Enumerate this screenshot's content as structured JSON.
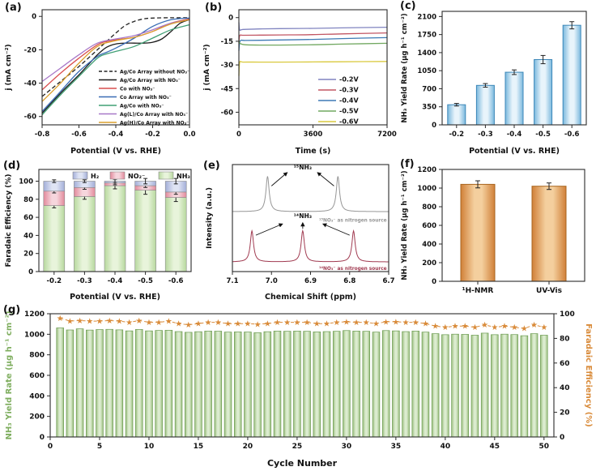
{
  "chart_data": [
    {
      "panel_label": "(a)",
      "type": "line",
      "xlabel": "Potential (V vs. RHE)",
      "ylabel": "j (mA cm⁻²)",
      "xlim": [
        -0.8,
        0.0
      ],
      "ylim": [
        -65,
        4
      ],
      "xticks": [
        -0.8,
        -0.6,
        -0.4,
        -0.2,
        0.0
      ],
      "xtick_labels": [
        "-0.8",
        "-0.6",
        "-0.4",
        "-0.2",
        "0.0"
      ],
      "yticks": [
        0,
        -20,
        -40,
        -60
      ],
      "legend_position": "bottom-right",
      "series": [
        {
          "name": "Ag/Co Array without NO₃⁻",
          "color": "#222222",
          "dash": true,
          "x": [
            -0.8,
            -0.7,
            -0.6,
            -0.5,
            -0.45,
            -0.4,
            -0.35,
            -0.3,
            -0.25,
            -0.2,
            -0.1,
            0
          ],
          "y": [
            -48,
            -39,
            -30,
            -20,
            -15,
            -10,
            -5.5,
            -3,
            -1.5,
            -1,
            -0.8,
            -0.8
          ]
        },
        {
          "name": "Ag/Co Array with NO₃⁻",
          "color": "#1a1a1a",
          "dash": false,
          "x": [
            -0.8,
            -0.7,
            -0.6,
            -0.55,
            -0.5,
            -0.45,
            -0.4,
            -0.35,
            -0.3,
            -0.25,
            -0.2,
            -0.15,
            -0.1,
            -0.05,
            0
          ],
          "y": [
            -58,
            -46,
            -35,
            -29,
            -23,
            -18.5,
            -16.5,
            -16,
            -16,
            -16,
            -15.5,
            -13.5,
            -9,
            -4,
            -2
          ]
        },
        {
          "name": "Co with NO₃⁻",
          "color": "#d94f4f",
          "dash": false,
          "x": [
            -0.8,
            -0.7,
            -0.6,
            -0.5,
            -0.45,
            -0.4,
            -0.3,
            -0.2,
            -0.1,
            0
          ],
          "y": [
            -44,
            -34,
            -25,
            -17,
            -15,
            -14,
            -12.5,
            -9,
            -4,
            -1.5
          ]
        },
        {
          "name": "Co Array with NO₃⁻",
          "color": "#3b6db5",
          "dash": false,
          "x": [
            -0.8,
            -0.7,
            -0.6,
            -0.5,
            -0.45,
            -0.4,
            -0.3,
            -0.2,
            -0.1,
            0
          ],
          "y": [
            -57,
            -45,
            -33,
            -24,
            -21.5,
            -19,
            -13,
            -6,
            -2,
            -1
          ]
        },
        {
          "name": "Ag/Co with NO₃⁻",
          "color": "#41a075",
          "dash": false,
          "x": [
            -0.8,
            -0.7,
            -0.6,
            -0.5,
            -0.45,
            -0.4,
            -0.3,
            -0.2,
            -0.1,
            0
          ],
          "y": [
            -59,
            -47,
            -36,
            -25,
            -22.5,
            -21,
            -18,
            -13,
            -8,
            -5
          ]
        },
        {
          "name": "Ag(L)/Co Array with NO₃⁻",
          "color": "#a878c8",
          "dash": false,
          "x": [
            -0.8,
            -0.7,
            -0.6,
            -0.5,
            -0.4,
            -0.3,
            -0.2,
            -0.1,
            0
          ],
          "y": [
            -39,
            -31,
            -23,
            -16,
            -13.5,
            -11.5,
            -8,
            -4,
            -2
          ]
        },
        {
          "name": "Ag(H)/Co Array with NO₃⁻",
          "color": "#dca02e",
          "dash": false,
          "x": [
            -0.8,
            -0.7,
            -0.6,
            -0.5,
            -0.4,
            -0.3,
            -0.2,
            -0.1,
            0
          ],
          "y": [
            -51,
            -40,
            -28,
            -18,
            -14.5,
            -12.5,
            -9,
            -4.5,
            -2
          ]
        }
      ]
    },
    {
      "panel_label": "(b)",
      "type": "line",
      "xlabel": "Time (s)",
      "ylabel": "j (mA cm⁻²)",
      "xlim": [
        0,
        7200
      ],
      "ylim": [
        -68,
        5
      ],
      "xticks": [
        0,
        3600,
        7200
      ],
      "xtick_labels": [
        "0",
        "3600",
        "7200"
      ],
      "yticks": [
        0,
        -15,
        -30,
        -45,
        -60
      ],
      "legend_position": "right",
      "series": [
        {
          "name": "-0.2V",
          "color": "#8084c0",
          "dash": false,
          "x": [
            0,
            40,
            200,
            1000,
            2000,
            3600,
            5000,
            7200
          ],
          "y": [
            -3,
            -7.8,
            -7.5,
            -7.2,
            -7.0,
            -6.8,
            -6.5,
            -6.1
          ]
        },
        {
          "name": "-0.3V",
          "color": "#c25663",
          "dash": false,
          "x": [
            0,
            40,
            200,
            1000,
            2000,
            3600,
            5000,
            7200
          ],
          "y": [
            -16,
            -11.4,
            -11.2,
            -11.1,
            -11.0,
            -10.8,
            -10.3,
            -9.7
          ]
        },
        {
          "name": "-0.4V",
          "color": "#3d7ab5",
          "dash": false,
          "x": [
            0,
            60,
            300,
            1000,
            2000,
            3600,
            5000,
            7200
          ],
          "y": [
            -21,
            -14.9,
            -14.5,
            -14.4,
            -14.2,
            -13.8,
            -13.3,
            -12.7
          ]
        },
        {
          "name": "-0.5V",
          "color": "#71a860",
          "dash": false,
          "x": [
            0,
            60,
            300,
            1000,
            2000,
            3600,
            5000,
            7200
          ],
          "y": [
            -14.5,
            -16.4,
            -17.2,
            -17.4,
            -17.4,
            -17.2,
            -16.8,
            -16.3
          ]
        },
        {
          "name": "-0.6V",
          "color": "#d9c93e",
          "dash": false,
          "x": [
            0,
            40,
            200,
            1000,
            2000,
            3600,
            5000,
            7200
          ],
          "y": [
            -37,
            -28.4,
            -28.2,
            -28.2,
            -28.2,
            -28.1,
            -28.0,
            -27.8
          ]
        }
      ]
    },
    {
      "panel_label": "(c)",
      "type": "bar",
      "xlabel": "Potential (V vs. RHE)",
      "ylabel": "NH₃ Yield Rate (μg h⁻¹ cm⁻²)",
      "categories": [
        "-0.2",
        "-0.3",
        "-0.4",
        "-0.5",
        "-0.6"
      ],
      "values": [
        390,
        765,
        1020,
        1265,
        1930
      ],
      "errors": [
        25,
        35,
        45,
        80,
        70
      ],
      "ylim": [
        0,
        2200
      ],
      "yticks": [
        0,
        350,
        700,
        1050,
        1400,
        1750,
        2100
      ],
      "bar_edge": "#3c87b8",
      "bar_dark": "#7ab8dd",
      "bar_light": "#e8f4fb"
    },
    {
      "panel_label": "(d)",
      "type": "bar",
      "stacked": true,
      "xlabel": "Potential (V vs. RHE)",
      "ylabel": "Faradaic Efficiency (%)",
      "categories": [
        "-0.2",
        "-0.3",
        "-0.4",
        "-0.5",
        "-0.6"
      ],
      "series": [
        {
          "name": "NH₃",
          "values": [
            73,
            83,
            95,
            90,
            82
          ],
          "errors": [
            2.5,
            3,
            3.5,
            4.5,
            4.5
          ],
          "dark": "#b7d89e",
          "light": "#e8f4db"
        },
        {
          "name": "NO₂⁻",
          "values": [
            16,
            10,
            3,
            5,
            6
          ],
          "errors": [
            2,
            2,
            2,
            2,
            2.5
          ],
          "dark": "#e2899b",
          "light": "#f6d6dd"
        },
        {
          "name": "H₂",
          "values": [
            11,
            7,
            2,
            5,
            12
          ],
          "errors": [
            1.5,
            1.5,
            2,
            3,
            3
          ],
          "dark": "#a3aed8",
          "light": "#dfe4f4"
        }
      ],
      "legend_order": [
        "H₂",
        "NO₂⁻",
        "NH₃"
      ],
      "ylim": [
        0,
        113
      ],
      "yticks": [
        0,
        20,
        40,
        60,
        80,
        100
      ]
    },
    {
      "panel_label": "(e)",
      "type": "line",
      "variant": "nmr-spectra",
      "xlabel": "Chemical Shift (ppm)",
      "ylabel": "Intensity (a.u.)",
      "xlim": [
        7.1,
        6.7
      ],
      "xticks": [
        7.1,
        7.0,
        6.9,
        6.8,
        6.7
      ],
      "xtick_labels": [
        "7.1",
        "7.0",
        "6.9",
        "6.8",
        "6.7"
      ],
      "spectra": [
        {
          "source_label": "¹⁵NO₃⁻ as nitrogen source",
          "peak_label": "¹⁵NH₃",
          "color": "#969696",
          "baseline": 0.56,
          "peak_height": 0.33,
          "peak_width": 0.005,
          "peaks": [
            7.01,
            6.83
          ]
        },
        {
          "source_label": "¹⁴NO₃⁻ as nitrogen source",
          "peak_label": "¹⁴NH₃",
          "color": "#a03a50",
          "baseline": 0.09,
          "peak_height": 0.29,
          "peak_width": 0.005,
          "peaks": [
            7.05,
            6.92,
            6.79
          ]
        }
      ]
    },
    {
      "panel_label": "(f)",
      "type": "bar",
      "xlabel": "",
      "ylabel": "NH₃ Yield Rate (μg h⁻¹ cm⁻²)",
      "categories": [
        "¹H-NMR",
        "UV-Vis"
      ],
      "values": [
        1040,
        1020
      ],
      "errors": [
        38,
        35
      ],
      "ylim": [
        0,
        1200
      ],
      "yticks": [
        0,
        200,
        400,
        600,
        800,
        1000,
        1200
      ],
      "bar_edge": "#a8651f",
      "bar_dark": "#d08038",
      "bar_light": "#f4cf9e"
    },
    {
      "panel_label": "(g)",
      "type": "bar",
      "overlay": "scatter-stars",
      "xlabel": "Cycle Number",
      "ylabel_left": "NH₃ Yield Rate (μg h⁻¹ cm⁻²)",
      "ylabel_right": "Faradaic Efficiency (%)",
      "left_title_color": "#7fae5f",
      "right_title_color": "#d98b3a",
      "xlim": [
        0,
        51
      ],
      "xticks": [
        0,
        5,
        10,
        15,
        20,
        25,
        30,
        35,
        40,
        45,
        50
      ],
      "ylim_left": [
        0,
        1200
      ],
      "yticks_left": [
        0,
        200,
        400,
        600,
        800,
        1000,
        1200
      ],
      "ylim_right": [
        0,
        100
      ],
      "yticks_right": [
        0,
        20,
        40,
        60,
        80,
        100
      ],
      "yield_values": [
        1062,
        1042,
        1053,
        1041,
        1046,
        1048,
        1043,
        1033,
        1047,
        1033,
        1037,
        1039,
        1026,
        1019,
        1025,
        1031,
        1030,
        1021,
        1023,
        1022,
        1015,
        1025,
        1031,
        1029,
        1031,
        1029,
        1023,
        1026,
        1029,
        1036,
        1031,
        1029,
        1021,
        1036,
        1033,
        1026,
        1031,
        1021,
        1006,
        996,
        1001,
        999,
        991,
        1011,
        996,
        1001,
        997,
        986,
        1006,
        991
      ],
      "fe_values": [
        96.5,
        94,
        94.5,
        94,
        94,
        94.5,
        94,
        93,
        94.5,
        93,
        93,
        94,
        92,
        91,
        92,
        93,
        93,
        92,
        92,
        92,
        91.5,
        92,
        93,
        93,
        93,
        93,
        92,
        92,
        93,
        93.5,
        93,
        93,
        92,
        93.5,
        93.5,
        93,
        93,
        92,
        90,
        89,
        90,
        90,
        89,
        91,
        89,
        90,
        89,
        88,
        91,
        89
      ],
      "bar_edge": "#6a9a50",
      "bar_dark": "#9cbf7f",
      "bar_light": "#dcecd0",
      "star_color": "#d98b3a",
      "star_glyph": "★"
    }
  ]
}
